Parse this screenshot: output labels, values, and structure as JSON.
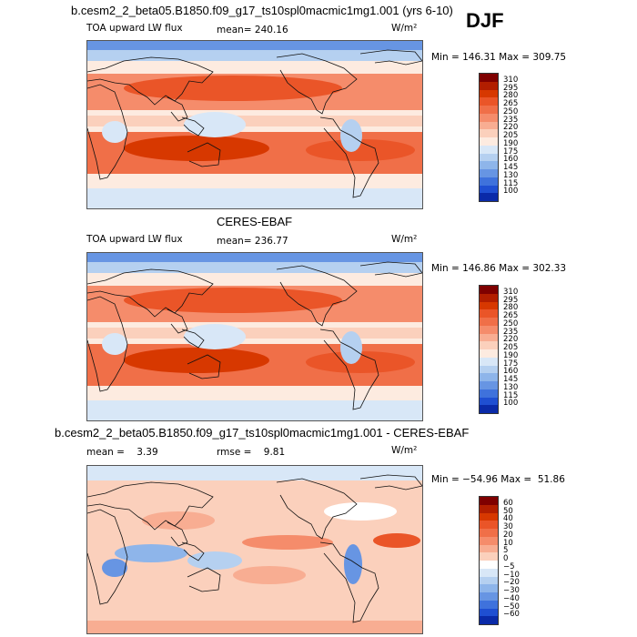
{
  "header": {
    "case_title": "b.cesm2_2_beta05.B1850.f09_g17_ts10spl0macmic1mg1.001 (yrs 6-10)",
    "season": "DJF"
  },
  "panels": [
    {
      "title": "",
      "variable": "TOA upward LW flux",
      "stat1": "mean= 240.16",
      "stat2": "",
      "units": "W/m²",
      "minmax": "Min = 146.31 Max = 309.75"
    },
    {
      "title": "CERES-EBAF",
      "variable": "TOA upward LW flux",
      "stat1": "mean= 236.77",
      "stat2": "",
      "units": "W/m²",
      "minmax": "Min = 146.86 Max = 302.33"
    },
    {
      "title": "b.cesm2_2_beta05.B1850.f09_g17_ts10spl0macmic1mg1.001 - CERES-EBAF",
      "variable": "",
      "stat1": "mean =    3.39",
      "stat2": "rmse =    9.81",
      "units": "W/m²",
      "minmax": "Min = −54.96 Max =  51.86"
    }
  ],
  "chart_data": [
    {
      "type": "heatmap",
      "title": "b.cesm2_2_beta05.B1850.f09_g17_ts10spl0macmic1mg1.001 (yrs 6-10)",
      "variable": "TOA upward LW flux",
      "season": "DJF",
      "units": "W/m2",
      "mean": 240.16,
      "min": 146.31,
      "max": 309.75,
      "colorbar_levels": [
        310,
        295,
        280,
        265,
        250,
        235,
        220,
        205,
        190,
        175,
        160,
        145,
        130,
        115,
        100
      ],
      "colors": [
        "#7f0000",
        "#b21e00",
        "#d73800",
        "#ea5528",
        "#f06f48",
        "#f58c6b",
        "#f8ad92",
        "#fbd0bc",
        "#fdebe0",
        "#d8e7f7",
        "#b5d0f0",
        "#8eb5ea",
        "#6795e3",
        "#3f72dc",
        "#1f4fd2",
        "#0a2aa8"
      ]
    },
    {
      "type": "heatmap",
      "title": "CERES-EBAF",
      "variable": "TOA upward LW flux",
      "units": "W/m2",
      "mean": 236.77,
      "min": 146.86,
      "max": 302.33,
      "colorbar_levels": [
        310,
        295,
        280,
        265,
        250,
        235,
        220,
        205,
        190,
        175,
        160,
        145,
        130,
        115,
        100
      ],
      "colors": [
        "#7f0000",
        "#b21e00",
        "#d73800",
        "#ea5528",
        "#f06f48",
        "#f58c6b",
        "#f8ad92",
        "#fbd0bc",
        "#fdebe0",
        "#d8e7f7",
        "#b5d0f0",
        "#8eb5ea",
        "#6795e3",
        "#3f72dc",
        "#1f4fd2",
        "#0a2aa8"
      ]
    },
    {
      "type": "heatmap",
      "title": "b.cesm2_2_beta05.B1850.f09_g17_ts10spl0macmic1mg1.001 - CERES-EBAF",
      "units": "W/m2",
      "mean": 3.39,
      "rmse": 9.81,
      "min": -54.96,
      "max": 51.86,
      "colorbar_levels": [
        60,
        50,
        40,
        30,
        20,
        10,
        5,
        0,
        -5,
        -10,
        -20,
        -30,
        -40,
        -50,
        -60
      ],
      "colors": [
        "#7f0000",
        "#b21e00",
        "#d73800",
        "#ea5528",
        "#f06f48",
        "#f58c6b",
        "#f8ad92",
        "#fbd0bc",
        "#ffffff",
        "#d8e7f7",
        "#b5d0f0",
        "#8eb5ea",
        "#6795e3",
        "#3f72dc",
        "#1f4fd2",
        "#0a2aa8"
      ]
    }
  ]
}
